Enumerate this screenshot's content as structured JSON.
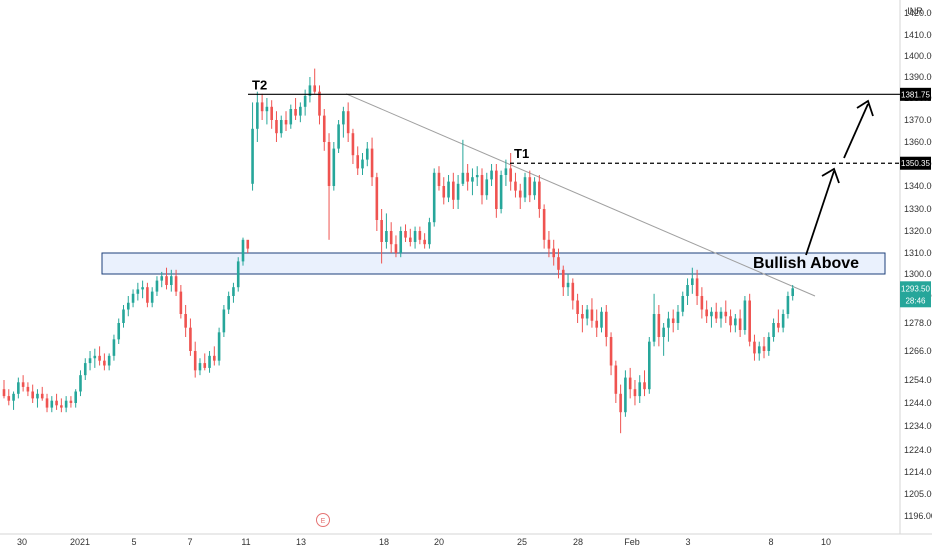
{
  "currency_label": "INR",
  "colors": {
    "up": "#26a69a",
    "down": "#ef5350",
    "zone_fill": "#eaf1fd",
    "zone_stroke": "#1c3f7a",
    "trendline": "#a0a0a0",
    "price_badge": "#26a69a",
    "event_marker": "#e57373",
    "axis_text": "#333333"
  },
  "chart_data": {
    "type": "candlestick",
    "x_axis": {
      "tick_labels": [
        "30",
        "2021",
        "5",
        "7",
        "11",
        "13",
        "18",
        "20",
        "25",
        "28",
        "Feb",
        "3",
        "8",
        "10"
      ]
    },
    "y_axis": {
      "range": [
        1190,
        1430
      ],
      "tick_values": [
        1196.0,
        1205.0,
        1214.0,
        1224.0,
        1234.0,
        1244.0,
        1254.0,
        1266.0,
        1278.0,
        1290.0,
        1300.0,
        1310.0,
        1320.0,
        1330.0,
        1340.0,
        1350.0,
        1360.0,
        1370.0,
        1380.0,
        1390.0,
        1400.0,
        1410.0,
        1420.0
      ],
      "tick_labels": [
        "1196.00",
        "1205.00",
        "1214.00",
        "1224.00",
        "1234.00",
        "1244.00",
        "1254.00",
        "1266.00",
        "1278.00",
        "1290.00",
        "1300.00",
        "1310.00",
        "1320.00",
        "1330.00",
        "1340.00",
        "1350.00",
        "1360.00",
        "1370.00",
        "1380.00",
        "1390.00",
        "1400.00",
        "1410.00",
        "1420.00"
      ]
    },
    "levels": [
      {
        "label": "T2",
        "value": 1381.75,
        "badge": "1381.75",
        "style": "solid"
      },
      {
        "label": "T1",
        "value": 1350.35,
        "badge": "1350.35",
        "style": "dashed"
      }
    ],
    "last_price": {
      "value": 1293.5,
      "label": "1293.50",
      "countdown": "28:46"
    },
    "zone": {
      "low": 1300,
      "high": 1310,
      "label": "Bullish Above"
    },
    "trendline": {
      "start_value": 1382,
      "end_value": 1290
    },
    "event_marker": "E",
    "candles": [
      [
        1250,
        1254,
        1246,
        1247
      ],
      [
        1247,
        1250,
        1243,
        1245
      ],
      [
        1245,
        1249,
        1241,
        1248
      ],
      [
        1248,
        1255,
        1246,
        1253
      ],
      [
        1253,
        1256,
        1249,
        1251
      ],
      [
        1251,
        1253,
        1247,
        1249
      ],
      [
        1249,
        1252,
        1244,
        1246
      ],
      [
        1246,
        1250,
        1242,
        1248
      ],
      [
        1248,
        1251,
        1245,
        1246
      ],
      [
        1246,
        1248,
        1240,
        1242
      ],
      [
        1242,
        1247,
        1240,
        1245
      ],
      [
        1245,
        1248,
        1241,
        1243
      ],
      [
        1243,
        1246,
        1240,
        1242
      ],
      [
        1242,
        1247,
        1240,
        1245
      ],
      [
        1245,
        1247,
        1242,
        1244
      ],
      [
        1244,
        1250,
        1242,
        1249
      ],
      [
        1249,
        1258,
        1247,
        1256
      ],
      [
        1256,
        1263,
        1254,
        1261
      ],
      [
        1261,
        1266,
        1258,
        1263
      ],
      [
        1263,
        1267,
        1259,
        1264
      ],
      [
        1264,
        1268,
        1260,
        1262
      ],
      [
        1262,
        1265,
        1258,
        1260
      ],
      [
        1260,
        1265,
        1258,
        1264
      ],
      [
        1264,
        1273,
        1262,
        1271
      ],
      [
        1271,
        1280,
        1269,
        1278
      ],
      [
        1278,
        1286,
        1276,
        1284
      ],
      [
        1284,
        1290,
        1281,
        1287
      ],
      [
        1287,
        1293,
        1285,
        1291
      ],
      [
        1291,
        1296,
        1288,
        1293
      ],
      [
        1293,
        1297,
        1289,
        1294
      ],
      [
        1294,
        1296,
        1285,
        1287
      ],
      [
        1287,
        1294,
        1285,
        1292
      ],
      [
        1292,
        1299,
        1290,
        1297
      ],
      [
        1297,
        1301,
        1294,
        1299
      ],
      [
        1299,
        1303,
        1293,
        1295
      ],
      [
        1295,
        1302,
        1292,
        1299
      ],
      [
        1299,
        1302,
        1290,
        1292
      ],
      [
        1292,
        1295,
        1280,
        1282
      ],
      [
        1282,
        1286,
        1272,
        1276
      ],
      [
        1276,
        1280,
        1264,
        1266
      ],
      [
        1266,
        1270,
        1255,
        1258
      ],
      [
        1258,
        1263,
        1256,
        1261
      ],
      [
        1261,
        1265,
        1258,
        1259
      ],
      [
        1259,
        1266,
        1257,
        1264
      ],
      [
        1264,
        1268,
        1260,
        1262
      ],
      [
        1262,
        1276,
        1260,
        1274
      ],
      [
        1274,
        1286,
        1272,
        1284
      ],
      [
        1284,
        1292,
        1282,
        1290
      ],
      [
        1290,
        1296,
        1287,
        1294
      ],
      [
        1294,
        1308,
        1292,
        1306
      ],
      [
        1306,
        1317,
        1304,
        1316
      ],
      [
        1316,
        1314,
        1310,
        1312
      ],
      [
        1341,
        1378,
        1338,
        1366
      ],
      [
        1366,
        1383,
        1360,
        1378
      ],
      [
        1378,
        1382,
        1370,
        1374
      ],
      [
        1374,
        1380,
        1368,
        1376
      ],
      [
        1376,
        1379,
        1366,
        1370
      ],
      [
        1370,
        1374,
        1360,
        1364
      ],
      [
        1364,
        1372,
        1362,
        1370
      ],
      [
        1370,
        1374,
        1365,
        1368
      ],
      [
        1368,
        1377,
        1366,
        1375
      ],
      [
        1375,
        1380,
        1370,
        1372
      ],
      [
        1372,
        1378,
        1369,
        1376
      ],
      [
        1376,
        1384,
        1372,
        1381
      ],
      [
        1381,
        1390,
        1378,
        1386
      ],
      [
        1386,
        1394,
        1382,
        1383
      ],
      [
        1383,
        1386,
        1368,
        1372
      ],
      [
        1372,
        1375,
        1356,
        1360
      ],
      [
        1360,
        1364,
        1316,
        1340
      ],
      [
        1340,
        1360,
        1338,
        1357
      ],
      [
        1357,
        1370,
        1355,
        1368
      ],
      [
        1368,
        1376,
        1362,
        1374
      ],
      [
        1374,
        1378,
        1360,
        1364
      ],
      [
        1364,
        1366,
        1350,
        1354
      ],
      [
        1354,
        1358,
        1345,
        1348
      ],
      [
        1348,
        1355,
        1345,
        1352
      ],
      [
        1352,
        1360,
        1349,
        1357
      ],
      [
        1357,
        1362,
        1340,
        1344
      ],
      [
        1344,
        1346,
        1320,
        1325
      ],
      [
        1325,
        1330,
        1305,
        1315
      ],
      [
        1315,
        1328,
        1312,
        1320
      ],
      [
        1320,
        1324,
        1310,
        1314
      ],
      [
        1314,
        1318,
        1308,
        1310
      ],
      [
        1310,
        1322,
        1308,
        1320
      ],
      [
        1320,
        1323,
        1315,
        1317
      ],
      [
        1317,
        1321,
        1313,
        1315
      ],
      [
        1315,
        1322,
        1312,
        1320
      ],
      [
        1320,
        1322,
        1314,
        1316
      ],
      [
        1316,
        1319,
        1312,
        1314
      ],
      [
        1314,
        1326,
        1312,
        1324
      ],
      [
        1324,
        1348,
        1322,
        1346
      ],
      [
        1346,
        1349,
        1338,
        1340
      ],
      [
        1340,
        1344,
        1332,
        1335
      ],
      [
        1335,
        1345,
        1333,
        1342
      ],
      [
        1342,
        1346,
        1330,
        1334
      ],
      [
        1334,
        1345,
        1330,
        1341
      ],
      [
        1341,
        1361,
        1340,
        1346
      ],
      [
        1346,
        1350,
        1338,
        1342
      ],
      [
        1342,
        1348,
        1336,
        1344
      ],
      [
        1344,
        1349,
        1340,
        1345
      ],
      [
        1345,
        1348,
        1332,
        1336
      ],
      [
        1336,
        1346,
        1334,
        1343
      ],
      [
        1343,
        1350,
        1340,
        1347
      ],
      [
        1347,
        1350,
        1326,
        1330
      ],
      [
        1330,
        1347,
        1328,
        1345
      ],
      [
        1345,
        1352,
        1340,
        1348
      ],
      [
        1348,
        1355,
        1338,
        1342
      ],
      [
        1342,
        1346,
        1335,
        1338
      ],
      [
        1338,
        1341,
        1330,
        1335
      ],
      [
        1335,
        1346,
        1333,
        1344
      ],
      [
        1344,
        1347,
        1333,
        1336
      ],
      [
        1336,
        1344,
        1334,
        1342
      ],
      [
        1342,
        1345,
        1326,
        1330
      ],
      [
        1330,
        1332,
        1312,
        1316
      ],
      [
        1316,
        1320,
        1308,
        1312
      ],
      [
        1312,
        1316,
        1304,
        1308
      ],
      [
        1308,
        1312,
        1298,
        1302
      ],
      [
        1302,
        1304,
        1290,
        1294
      ],
      [
        1294,
        1300,
        1290,
        1296
      ],
      [
        1296,
        1298,
        1284,
        1288
      ],
      [
        1288,
        1291,
        1278,
        1282
      ],
      [
        1282,
        1286,
        1274,
        1280
      ],
      [
        1280,
        1286,
        1277,
        1284
      ],
      [
        1284,
        1289,
        1276,
        1279
      ],
      [
        1279,
        1284,
        1272,
        1276
      ],
      [
        1276,
        1285,
        1274,
        1283
      ],
      [
        1283,
        1286,
        1268,
        1272
      ],
      [
        1272,
        1274,
        1256,
        1260
      ],
      [
        1260,
        1262,
        1244,
        1248
      ],
      [
        1248,
        1252,
        1231,
        1240
      ],
      [
        1240,
        1258,
        1238,
        1255
      ],
      [
        1255,
        1259,
        1246,
        1250
      ],
      [
        1250,
        1254,
        1243,
        1247
      ],
      [
        1247,
        1256,
        1244,
        1253
      ],
      [
        1253,
        1258,
        1247,
        1250
      ],
      [
        1250,
        1272,
        1248,
        1270
      ],
      [
        1270,
        1291,
        1268,
        1282
      ],
      [
        1282,
        1286,
        1268,
        1272
      ],
      [
        1272,
        1278,
        1264,
        1276
      ],
      [
        1276,
        1283,
        1270,
        1280
      ],
      [
        1280,
        1284,
        1274,
        1278
      ],
      [
        1278,
        1286,
        1275,
        1283
      ],
      [
        1283,
        1292,
        1281,
        1290
      ],
      [
        1290,
        1298,
        1286,
        1295
      ],
      [
        1295,
        1303,
        1291,
        1298
      ],
      [
        1298,
        1302,
        1286,
        1290
      ],
      [
        1290,
        1294,
        1280,
        1284
      ],
      [
        1284,
        1288,
        1278,
        1281
      ],
      [
        1281,
        1285,
        1276,
        1283
      ],
      [
        1283,
        1287,
        1278,
        1280
      ],
      [
        1280,
        1285,
        1276,
        1283
      ],
      [
        1283,
        1288,
        1278,
        1281
      ],
      [
        1281,
        1284,
        1274,
        1277
      ],
      [
        1277,
        1282,
        1274,
        1280
      ],
      [
        1280,
        1284,
        1272,
        1275
      ],
      [
        1275,
        1290,
        1273,
        1288
      ],
      [
        1288,
        1291,
        1268,
        1270
      ],
      [
        1270,
        1273,
        1262,
        1265
      ],
      [
        1265,
        1270,
        1262,
        1268
      ],
      [
        1268,
        1272,
        1263,
        1266
      ],
      [
        1266,
        1274,
        1264,
        1272
      ],
      [
        1272,
        1280,
        1270,
        1278
      ],
      [
        1278,
        1284,
        1274,
        1276
      ],
      [
        1276,
        1284,
        1274,
        1282
      ],
      [
        1282,
        1292,
        1280,
        1290
      ],
      [
        1290,
        1295,
        1288,
        1293.5
      ]
    ]
  }
}
